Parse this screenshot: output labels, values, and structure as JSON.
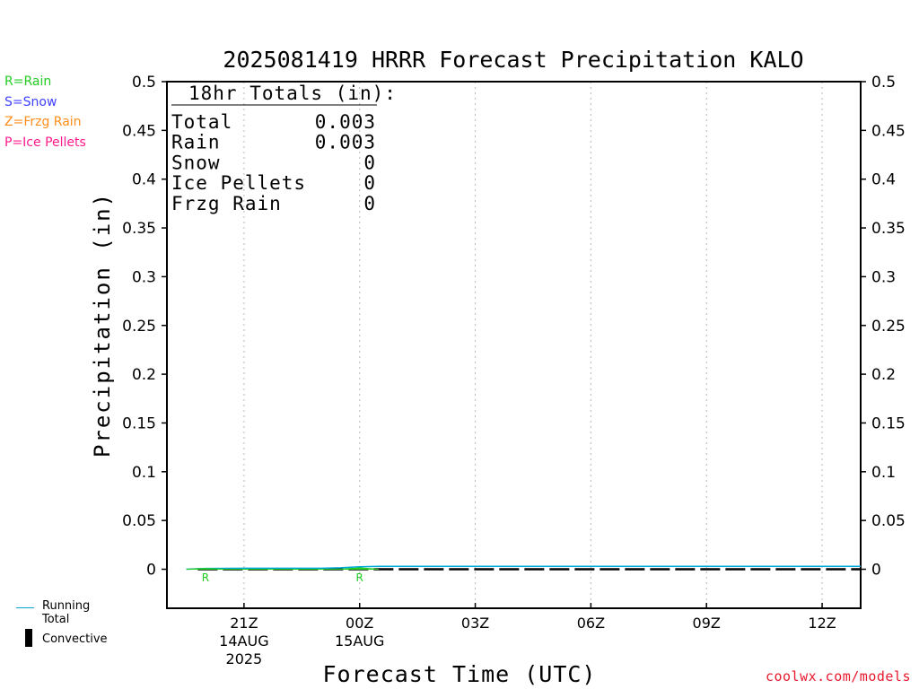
{
  "legend_left": [
    {
      "text": "R=Rain",
      "color": "#22cc22"
    },
    {
      "text": "S=Snow",
      "color": "#4040ff"
    },
    {
      "text": "Z=Frzg Rain",
      "color": "#ff8c1a"
    },
    {
      "text": "P=Ice Pellets",
      "color": "#ff1a8c"
    }
  ],
  "legend_bottom": {
    "running_total": "Running Total",
    "convective": "Convective",
    "running_total_color": "#00a8d8"
  },
  "credit": "coolwx.com/models",
  "chart_data": {
    "type": "line",
    "title": "2025081419 HRRR Forecast Precipitation KALO",
    "xlabel": "Forecast Time (UTC)",
    "ylabel": "Precipitation (in)",
    "ylim": [
      -0.04,
      0.5
    ],
    "yticks": [
      "0",
      "0.05",
      "0.1",
      "0.15",
      "0.2",
      "0.25",
      "0.3",
      "0.35",
      "0.4",
      "0.45",
      "0.5"
    ],
    "yticks_right": [
      "0",
      "0.05",
      "0.1",
      "0.15",
      "0.2",
      "0.25",
      "0.3",
      "0.35",
      "0.4",
      "0.45",
      "0.5"
    ],
    "xlim_hours": [
      19,
      37
    ],
    "xticks": [
      {
        "hour": 21,
        "label": "21Z",
        "sub": [
          "14AUG",
          "2025"
        ]
      },
      {
        "hour": 24,
        "label": "00Z",
        "sub": [
          "15AUG"
        ]
      },
      {
        "hour": 27,
        "label": "03Z",
        "sub": []
      },
      {
        "hour": 30,
        "label": "06Z",
        "sub": []
      },
      {
        "hour": 33,
        "label": "09Z",
        "sub": []
      },
      {
        "hour": 36,
        "label": "12Z",
        "sub": []
      }
    ],
    "grid_x": true,
    "totals_box": {
      "heading": "18hr Totals (in):",
      "rows": [
        {
          "label": "Total",
          "value": "0.003"
        },
        {
          "label": "Rain",
          "value": "0.003"
        },
        {
          "label": "Snow",
          "value": "0"
        },
        {
          "label": "Ice Pellets",
          "value": "0"
        },
        {
          "label": "Frzg Rain",
          "value": "0"
        }
      ]
    },
    "series": [
      {
        "name": "Running Total",
        "color": "#00a8d8",
        "x": [
          19.5,
          20,
          21,
          22,
          23,
          23.5,
          24,
          24.5,
          25,
          27,
          30,
          33,
          36,
          37
        ],
        "y": [
          0,
          0.0008,
          0.001,
          0.001,
          0.001,
          0.0015,
          0.0025,
          0.003,
          0.003,
          0.003,
          0.003,
          0.003,
          0.003,
          0.003
        ]
      },
      {
        "name": "Rain",
        "color": "#22cc22",
        "x": [
          19.5,
          20,
          20.5,
          23.5,
          24,
          24.5
        ],
        "y": [
          0,
          0.0008,
          0,
          0,
          0.0015,
          0
        ]
      }
    ],
    "type_markers": [
      {
        "hour": 20,
        "text": "R",
        "color": "#22cc22"
      },
      {
        "hour": 24,
        "text": "R",
        "color": "#22cc22"
      }
    ],
    "convective_range_hours": [
      19.8,
      37
    ]
  }
}
